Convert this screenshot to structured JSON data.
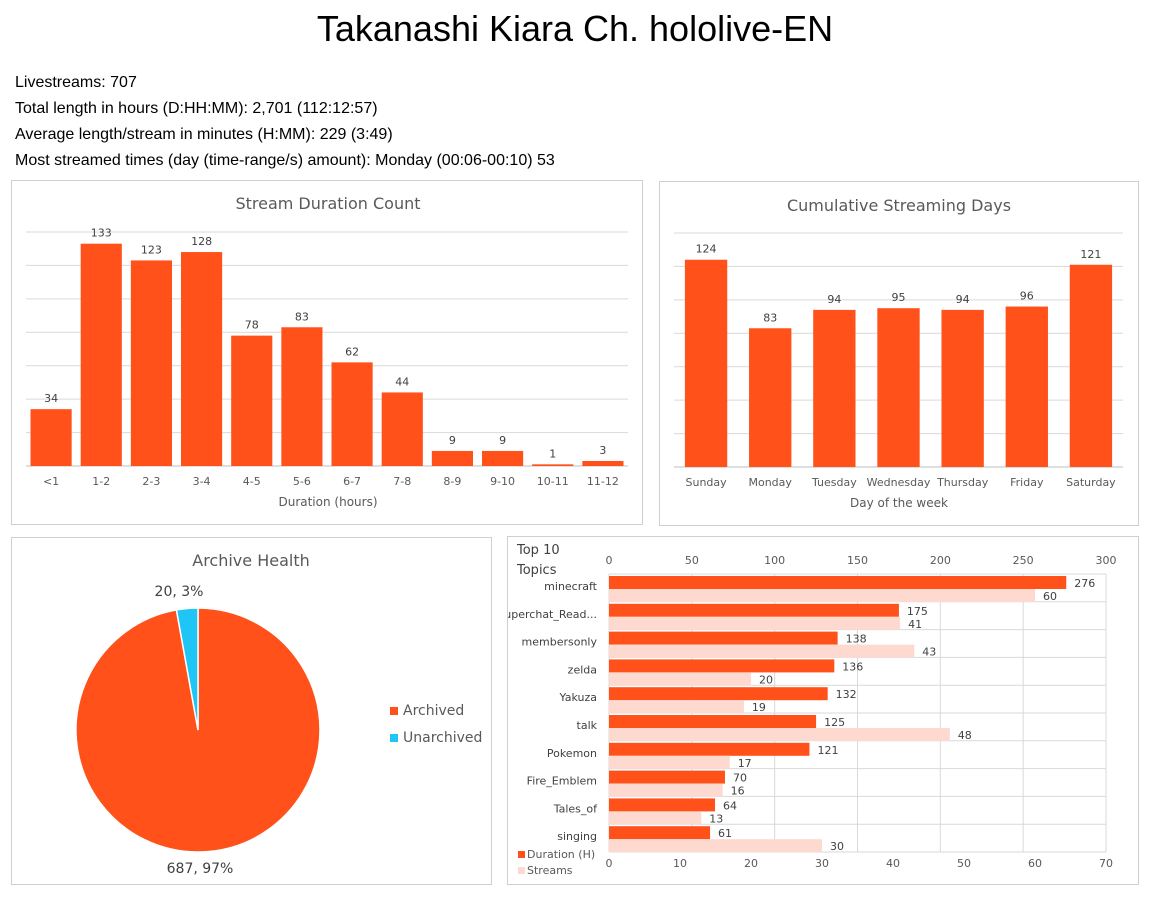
{
  "title": "Takanashi Kiara Ch. hololive-EN",
  "stats": [
    "Livestreams: 707",
    "Total length in hours (D:HH:MM): 2,701 (112:12:57)",
    "Average length/stream in minutes (H:MM): 229 (3:49)",
    "Most streamed times (day (time-range/s) amount): Monday (00:06-00:10) 53"
  ],
  "colors": {
    "primary": "#FF5119",
    "secondary": "#FDD9D0",
    "unarchived": "#1FC5F5",
    "grid": "#d9d9d9"
  },
  "chart_data": [
    {
      "type": "bar",
      "title": "Stream Duration Count",
      "xlabel": "Duration (hours)",
      "ylabel": "",
      "categories": [
        "<1",
        "1-2",
        "2-3",
        "3-4",
        "4-5",
        "5-6",
        "6-7",
        "7-8",
        "8-9",
        "9-10",
        "10-11",
        "11-12"
      ],
      "values": [
        34,
        133,
        123,
        128,
        78,
        83,
        62,
        44,
        9,
        9,
        1,
        3
      ],
      "ylim": [
        0,
        140
      ],
      "grid": true
    },
    {
      "type": "bar",
      "title": "Cumulative Streaming Days",
      "xlabel": "Day of the week",
      "ylabel": "",
      "categories": [
        "Sunday",
        "Monday",
        "Tuesday",
        "Wednesday",
        "Thursday",
        "Friday",
        "Saturday"
      ],
      "values": [
        124,
        83,
        94,
        95,
        94,
        96,
        121
      ],
      "ylim": [
        0,
        140
      ],
      "grid": true
    },
    {
      "type": "pie",
      "title": "Archive Health",
      "slices": [
        {
          "name": "Archived",
          "value": 687,
          "label": "687, 97%"
        },
        {
          "name": "Unarchived",
          "value": 20,
          "label": "20, 3%"
        }
      ],
      "legend": "right"
    },
    {
      "type": "bar",
      "orientation": "horizontal",
      "title": "Top 10 Topics",
      "categories": [
        "minecraft",
        "Superchat_Read...",
        "membersonly",
        "zelda",
        "Yakuza",
        "talk",
        "Pokemon",
        "Fire_Emblem",
        "Tales_of",
        "singing"
      ],
      "series": [
        {
          "name": "Duration (H)",
          "axis": "top",
          "values": [
            276,
            175,
            138,
            136,
            132,
            125,
            121,
            70,
            64,
            61
          ]
        },
        {
          "name": "Streams",
          "axis": "bottom",
          "values": [
            60,
            41,
            43,
            20,
            19,
            48,
            17,
            16,
            13,
            30
          ]
        }
      ],
      "top_axis": {
        "range": [
          0,
          300
        ],
        "ticks": [
          0,
          50,
          100,
          150,
          200,
          250,
          300
        ]
      },
      "bottom_axis": {
        "range": [
          0,
          70
        ],
        "ticks": [
          0,
          10,
          20,
          30,
          40,
          50,
          60,
          70
        ]
      },
      "legend": "bottom-left",
      "grid": true
    }
  ]
}
